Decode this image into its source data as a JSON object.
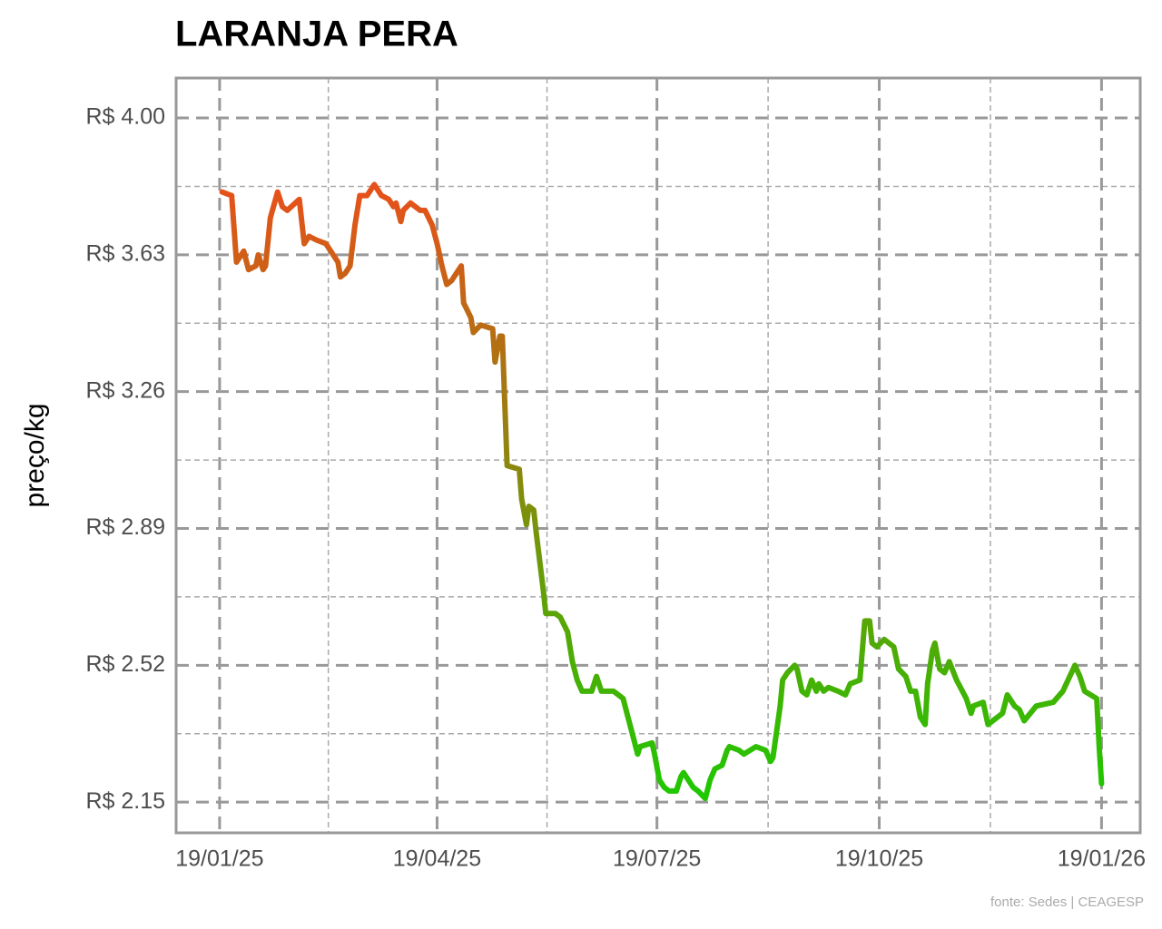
{
  "chart_data": {
    "type": "line",
    "title": "LARANJA PERA",
    "y_label": "preço/kg",
    "source": "fonte: Sedes | CEAGESP",
    "line_colors": [
      "#e8501a",
      "#1ec800"
    ],
    "grid": true,
    "xlim": [
      "2025-01-01",
      "2026-02-04"
    ],
    "xticks": [
      {
        "value": "2025-01-19",
        "label": "19/01/25"
      },
      {
        "value": "2025-04-19",
        "label": "19/04/25"
      },
      {
        "value": "2025-07-19",
        "label": "19/07/25"
      },
      {
        "value": "2025-10-19",
        "label": "19/10/25"
      },
      {
        "value": "2026-01-19",
        "label": "19/01/26"
      }
    ],
    "ylim": [
      2.067,
      4.108
    ],
    "yticks": [
      {
        "value": 2.15,
        "label": "R$ 2.15"
      },
      {
        "value": 2.52,
        "label": "R$ 2.52"
      },
      {
        "value": 2.89,
        "label": "R$ 2.89"
      },
      {
        "value": 3.26,
        "label": "R$ 3.26"
      },
      {
        "value": 3.63,
        "label": "R$ 3.63"
      },
      {
        "value": 4.0,
        "label": "R$ 4.00"
      }
    ],
    "x": [
      "2025-01-20",
      "2025-01-24",
      "2025-01-26",
      "2025-01-29",
      "2025-01-31",
      "2025-02-03",
      "2025-02-04",
      "2025-02-06",
      "2025-02-07",
      "2025-02-09",
      "2025-02-12",
      "2025-02-14",
      "2025-02-16",
      "2025-02-21",
      "2025-02-23",
      "2025-02-25",
      "2025-02-28",
      "2025-03-04",
      "2025-03-06",
      "2025-03-09",
      "2025-03-10",
      "2025-03-12",
      "2025-03-14",
      "2025-03-16",
      "2025-03-18",
      "2025-03-21",
      "2025-03-24",
      "2025-03-27",
      "2025-03-30",
      "2025-04-01",
      "2025-04-02",
      "2025-04-04",
      "2025-04-05",
      "2025-04-08",
      "2025-04-12",
      "2025-04-14",
      "2025-04-17",
      "2025-04-19",
      "2025-04-21",
      "2025-04-23",
      "2025-04-25",
      "2025-04-27",
      "2025-04-29",
      "2025-04-30",
      "2025-05-03",
      "2025-05-04",
      "2025-05-07",
      "2025-05-12",
      "2025-05-13",
      "2025-05-15",
      "2025-05-16",
      "2025-05-18",
      "2025-05-23",
      "2025-05-24",
      "2025-05-26",
      "2025-05-27",
      "2025-05-29",
      "2025-05-30",
      "2025-06-02",
      "2025-06-03",
      "2025-06-07",
      "2025-06-09",
      "2025-06-12",
      "2025-06-14",
      "2025-06-16",
      "2025-06-18",
      "2025-06-22",
      "2025-06-24",
      "2025-06-26",
      "2025-06-29",
      "2025-07-01",
      "2025-07-03",
      "2025-07-05",
      "2025-07-07",
      "2025-07-09",
      "2025-07-11",
      "2025-07-12",
      "2025-07-17",
      "2025-07-18",
      "2025-07-20",
      "2025-07-22",
      "2025-07-24",
      "2025-07-27",
      "2025-07-29",
      "2025-07-30",
      "2025-08-03",
      "2025-08-05",
      "2025-08-08",
      "2025-08-10",
      "2025-08-12",
      "2025-08-15",
      "2025-08-17",
      "2025-08-18",
      "2025-08-22",
      "2025-08-24",
      "2025-08-29",
      "2025-09-02",
      "2025-09-04",
      "2025-09-05",
      "2025-09-08",
      "2025-09-09",
      "2025-09-11",
      "2025-09-14",
      "2025-09-15",
      "2025-09-17",
      "2025-09-19",
      "2025-09-21",
      "2025-09-23",
      "2025-09-24",
      "2025-09-26",
      "2025-09-28",
      "2025-10-02",
      "2025-10-05",
      "2025-10-07",
      "2025-10-11",
      "2025-10-13",
      "2025-10-15",
      "2025-10-16",
      "2025-10-18",
      "2025-10-21",
      "2025-10-25",
      "2025-10-27",
      "2025-10-30",
      "2025-11-01",
      "2025-11-03",
      "2025-11-05",
      "2025-11-07",
      "2025-11-08",
      "2025-11-10",
      "2025-11-11",
      "2025-11-13",
      "2025-11-15",
      "2025-11-17",
      "2025-11-20",
      "2025-11-24",
      "2025-11-26",
      "2025-11-27",
      "2025-12-01",
      "2025-12-03",
      "2025-12-05",
      "2025-12-09",
      "2025-12-11",
      "2025-12-14",
      "2025-12-16",
      "2025-12-18",
      "2025-12-23",
      "2025-12-30",
      "2026-01-03",
      "2026-01-08",
      "2026-01-10",
      "2026-01-12",
      "2026-01-17",
      "2026-01-18",
      "2026-01-19"
    ],
    "values": [
      3.8,
      3.79,
      3.61,
      3.64,
      3.59,
      3.6,
      3.63,
      3.59,
      3.6,
      3.73,
      3.8,
      3.76,
      3.75,
      3.78,
      3.66,
      3.68,
      3.67,
      3.66,
      3.64,
      3.61,
      3.57,
      3.58,
      3.6,
      3.71,
      3.79,
      3.79,
      3.82,
      3.79,
      3.78,
      3.76,
      3.77,
      3.72,
      3.75,
      3.77,
      3.75,
      3.75,
      3.71,
      3.66,
      3.6,
      3.55,
      3.56,
      3.58,
      3.6,
      3.5,
      3.46,
      3.42,
      3.44,
      3.43,
      3.34,
      3.41,
      3.41,
      3.06,
      3.05,
      2.97,
      2.9,
      2.95,
      2.94,
      2.88,
      2.72,
      2.66,
      2.66,
      2.65,
      2.61,
      2.53,
      2.48,
      2.45,
      2.45,
      2.49,
      2.45,
      2.45,
      2.45,
      2.44,
      2.43,
      2.38,
      2.33,
      2.28,
      2.3,
      2.31,
      2.28,
      2.21,
      2.19,
      2.18,
      2.18,
      2.22,
      2.23,
      2.19,
      2.18,
      2.16,
      2.21,
      2.24,
      2.25,
      2.29,
      2.3,
      2.29,
      2.28,
      2.3,
      2.29,
      2.26,
      2.27,
      2.41,
      2.48,
      2.5,
      2.52,
      2.51,
      2.45,
      2.44,
      2.48,
      2.45,
      2.47,
      2.45,
      2.46,
      2.45,
      2.44,
      2.47,
      2.48,
      2.64,
      2.64,
      2.58,
      2.57,
      2.59,
      2.57,
      2.51,
      2.49,
      2.45,
      2.45,
      2.38,
      2.36,
      2.47,
      2.56,
      2.58,
      2.51,
      2.5,
      2.53,
      2.48,
      2.43,
      2.39,
      2.41,
      2.42,
      2.36,
      2.37,
      2.39,
      2.44,
      2.41,
      2.4,
      2.37,
      2.41,
      2.42,
      2.45,
      2.52,
      2.49,
      2.45,
      2.43,
      2.3,
      2.2
    ]
  }
}
